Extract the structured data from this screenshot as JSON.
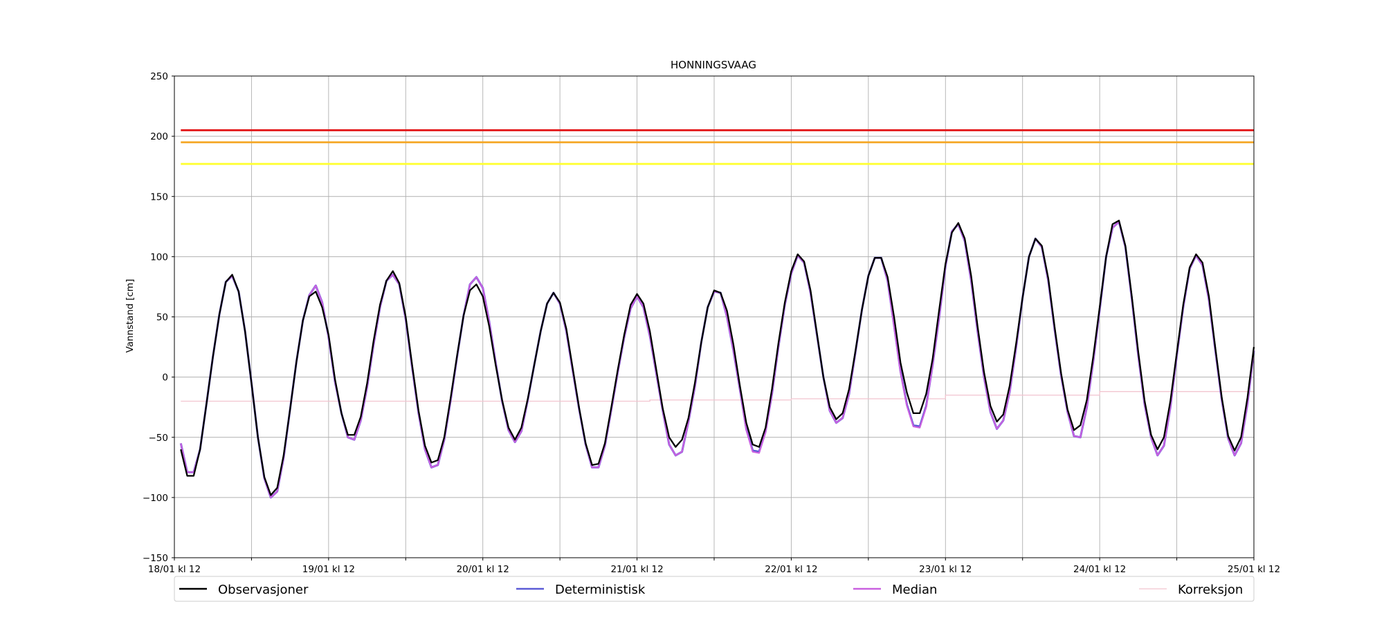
{
  "chart_data": {
    "type": "line",
    "title": "HONNINGSVAAG",
    "xlabel": "",
    "ylabel": "Vannstand [cm]",
    "ylim": [
      -150,
      250
    ],
    "yticks": [
      -150,
      -100,
      -50,
      0,
      50,
      100,
      150,
      200,
      250
    ],
    "ytick_labels": [
      "−150",
      "−100",
      "−50",
      "0",
      "50",
      "100",
      "150",
      "200",
      "250"
    ],
    "x_unit": "hours since 18/01 12:00",
    "x_range_hours": [
      0,
      168
    ],
    "xtick_labels": [
      "18/01 kl 12",
      "19/01 kl 12",
      "20/01 kl 12",
      "21/01 kl 12",
      "22/01 kl 12",
      "23/01 kl 12",
      "24/01 kl 12",
      "25/01 kl 12"
    ],
    "grid": true,
    "legend_position": "bottom",
    "thresholds": [
      {
        "value": 205,
        "color": "#e31a1c"
      },
      {
        "value": 195,
        "color": "#f5a623"
      },
      {
        "value": 177,
        "color": "#ffff33"
      }
    ],
    "observasjoner_y": [
      -60,
      -82,
      -82,
      -60,
      -22,
      17,
      52,
      79,
      85,
      71,
      38,
      -5,
      -50,
      -83,
      -98,
      -92,
      -65,
      -27,
      13,
      47,
      67,
      71,
      58,
      35,
      -2,
      -30,
      -48,
      -48,
      -33,
      -5,
      30,
      60,
      80,
      88,
      78,
      50,
      10,
      -28,
      -57,
      -71,
      -69,
      -50,
      -17,
      18,
      51,
      72,
      77,
      67,
      42,
      10,
      -19,
      -42,
      -52,
      -42,
      -18,
      10,
      38,
      61,
      70,
      62,
      40,
      7,
      -26,
      -55,
      -73,
      -72,
      -55,
      -25,
      6,
      35,
      60,
      69,
      61,
      38,
      6,
      -26,
      -50,
      -58,
      -52,
      -34,
      -5,
      29,
      58,
      72,
      70,
      55,
      27,
      -7,
      -38,
      -56,
      -58,
      -42,
      -10,
      28,
      62,
      88,
      102,
      96,
      72,
      36,
      0,
      -25,
      -35,
      -30,
      -10,
      22,
      56,
      84,
      99,
      99,
      83,
      50,
      12,
      -13,
      -30,
      -30,
      -14,
      15,
      55,
      94,
      120,
      128,
      115,
      84,
      42,
      4,
      -24,
      -37,
      -31,
      -7,
      28,
      66,
      100,
      115,
      109,
      82,
      41,
      3,
      -27,
      -44,
      -40,
      -19,
      17,
      58,
      100,
      127,
      130,
      109,
      67,
      21,
      -20,
      -48,
      -60,
      -50,
      -20,
      20,
      60,
      91,
      102,
      95,
      67,
      24,
      -17,
      -49,
      -61,
      -50,
      -17,
      25
    ],
    "series": [
      {
        "name": "Observasjoner",
        "color": "#000000",
        "x": "hours 0..168 hourly",
        "values_ref": "observasjoner_y"
      },
      {
        "name": "Deterministisk",
        "color": "#5b5bd6",
        "y": [
          -55,
          -79,
          -79,
          -60,
          -22,
          17,
          52,
          79,
          84,
          71,
          38,
          -5,
          -50,
          -84,
          -100,
          -95,
          -67,
          -27,
          13,
          47,
          68,
          76,
          62,
          33,
          -4,
          -30,
          -50,
          -52,
          -36,
          -8,
          27,
          58,
          80,
          85,
          77,
          48,
          8,
          -30,
          -60,
          -75,
          -73,
          -52,
          -19,
          17,
          51,
          77,
          83,
          74,
          46,
          12,
          -20,
          -44,
          -54,
          -45,
          -19,
          10,
          38,
          61,
          70,
          61,
          38,
          5,
          -27,
          -56,
          -75,
          -75,
          -57,
          -27,
          4,
          33,
          57,
          67,
          58,
          34,
          3,
          -28,
          -56,
          -65,
          -62,
          -37,
          -8,
          29,
          58,
          71,
          70,
          50,
          22,
          -10,
          -43,
          -61,
          -62,
          -45,
          -14,
          25,
          60,
          86,
          101,
          95,
          70,
          35,
          0,
          -28,
          -38,
          -34,
          -14,
          21,
          56,
          84,
          99,
          99,
          80,
          43,
          5,
          -23,
          -40,
          -41,
          -24,
          10,
          49,
          92,
          121,
          127,
          113,
          80,
          38,
          0,
          -29,
          -43,
          -36,
          -12,
          25,
          66,
          100,
          115,
          108,
          80,
          39,
          1,
          -29,
          -49,
          -50,
          -25,
          13,
          56,
          100,
          124,
          129,
          108,
          65,
          18,
          -23,
          -50,
          -65,
          -57,
          -25,
          18,
          58,
          90,
          101,
          93,
          64,
          22,
          -19,
          -51,
          -65,
          -55,
          -22,
          22
        ]
      },
      {
        "name": "Median",
        "color": "#c960e0",
        "y": [
          -55,
          -79,
          -79,
          -60,
          -22,
          17,
          52,
          79,
          84,
          71,
          38,
          -5,
          -50,
          -84,
          -100,
          -95,
          -67,
          -27,
          13,
          47,
          68,
          76,
          62,
          33,
          -4,
          -30,
          -50,
          -52,
          -36,
          -8,
          27,
          58,
          80,
          85,
          77,
          48,
          8,
          -30,
          -60,
          -75,
          -73,
          -52,
          -19,
          17,
          51,
          77,
          83,
          74,
          46,
          12,
          -20,
          -44,
          -54,
          -45,
          -19,
          10,
          38,
          61,
          70,
          61,
          38,
          5,
          -27,
          -56,
          -75,
          -75,
          -57,
          -27,
          4,
          33,
          57,
          67,
          58,
          34,
          3,
          -28,
          -56,
          -65,
          -62,
          -37,
          -8,
          29,
          58,
          71,
          70,
          50,
          22,
          -10,
          -44,
          -62,
          -63,
          -46,
          -14,
          25,
          60,
          86,
          101,
          95,
          70,
          35,
          0,
          -28,
          -38,
          -34,
          -14,
          21,
          56,
          84,
          99,
          99,
          80,
          42,
          4,
          -24,
          -41,
          -42,
          -25,
          10,
          49,
          92,
          121,
          127,
          113,
          80,
          38,
          0,
          -29,
          -43,
          -36,
          -12,
          25,
          66,
          100,
          115,
          108,
          80,
          39,
          1,
          -29,
          -49,
          -50,
          -25,
          13,
          56,
          100,
          124,
          129,
          108,
          65,
          18,
          -23,
          -50,
          -65,
          -57,
          -25,
          18,
          58,
          90,
          101,
          93,
          64,
          22,
          -19,
          -51,
          -65,
          -55,
          -22,
          22
        ]
      },
      {
        "name": "Korreksjon",
        "color": "#f2c4cf",
        "steps": [
          {
            "from_hour": 0,
            "value": -20
          },
          {
            "from_hour": 74,
            "value": -19
          },
          {
            "from_hour": 96,
            "value": -18
          },
          {
            "from_hour": 120,
            "value": -15
          },
          {
            "from_hour": 144,
            "value": -12
          }
        ]
      }
    ]
  }
}
